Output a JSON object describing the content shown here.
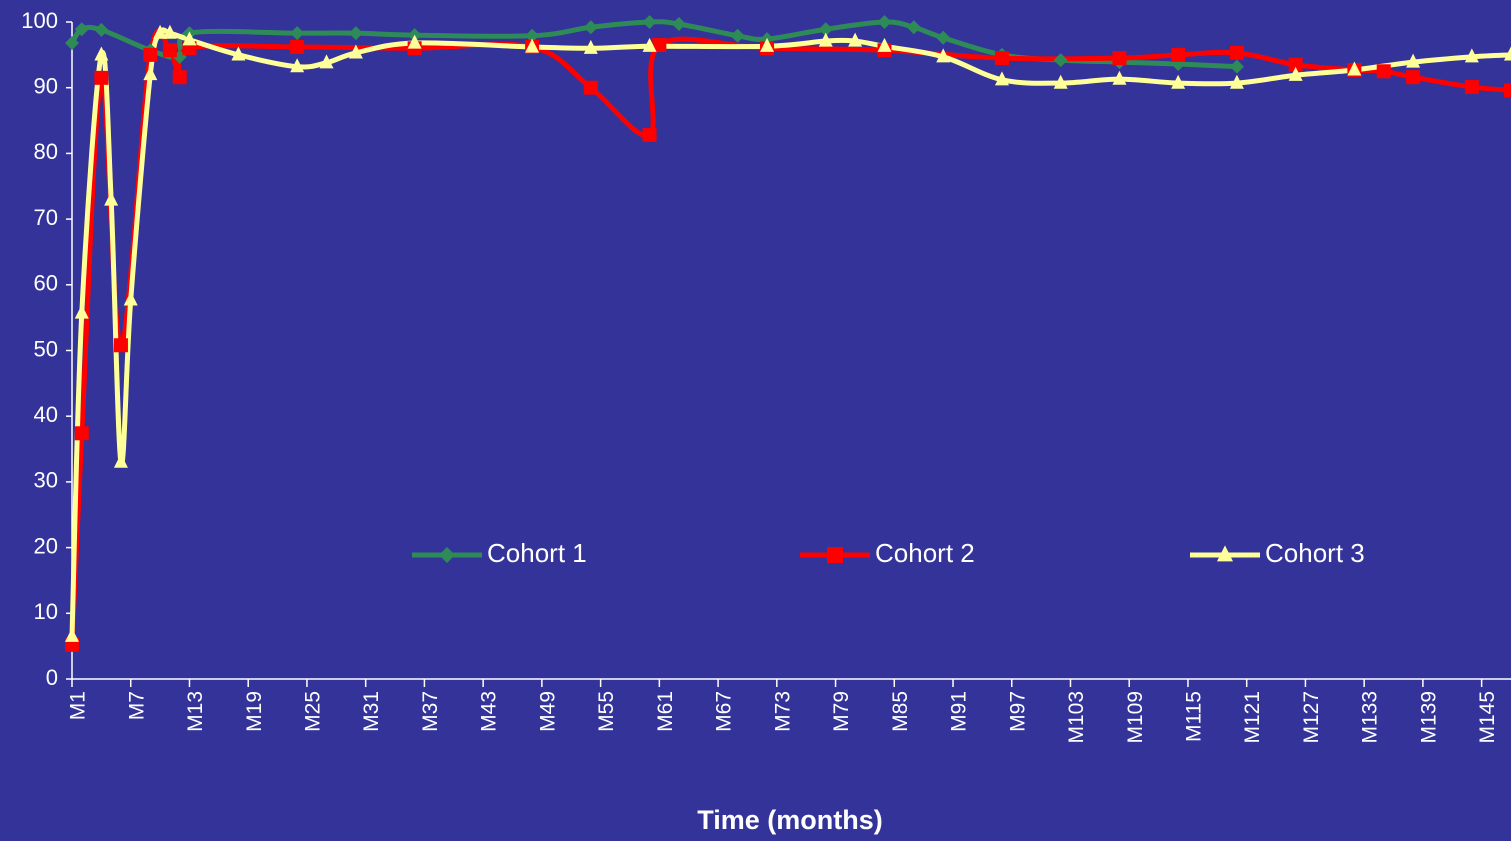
{
  "chart_data": {
    "type": "line",
    "x_label": "Time (months)",
    "xlim": [
      1,
      148
    ],
    "xticks": [
      {
        "value": 1,
        "label": "M1"
      },
      {
        "value": 7,
        "label": "M7"
      },
      {
        "value": 13,
        "label": "M13"
      },
      {
        "value": 19,
        "label": "M19"
      },
      {
        "value": 25,
        "label": "M25"
      },
      {
        "value": 31,
        "label": "M31"
      },
      {
        "value": 37,
        "label": "M37"
      },
      {
        "value": 43,
        "label": "M43"
      },
      {
        "value": 49,
        "label": "M49"
      },
      {
        "value": 55,
        "label": "M55"
      },
      {
        "value": 61,
        "label": "M61"
      },
      {
        "value": 67,
        "label": "M67"
      },
      {
        "value": 73,
        "label": "M73"
      },
      {
        "value": 79,
        "label": "M79"
      },
      {
        "value": 85,
        "label": "M85"
      },
      {
        "value": 91,
        "label": "M91"
      },
      {
        "value": 97,
        "label": "M97"
      },
      {
        "value": 103,
        "label": "M103"
      },
      {
        "value": 109,
        "label": "M109"
      },
      {
        "value": 115,
        "label": "M115"
      },
      {
        "value": 121,
        "label": "M121"
      },
      {
        "value": 127,
        "label": "M127"
      },
      {
        "value": 133,
        "label": "M133"
      },
      {
        "value": 139,
        "label": "M139"
      },
      {
        "value": 145,
        "label": "M145"
      }
    ],
    "ylim": [
      0,
      100
    ],
    "yticks": [
      0,
      10,
      20,
      30,
      40,
      50,
      60,
      70,
      80,
      90,
      100
    ],
    "legend": "center",
    "series": [
      {
        "name": "Cohort 1",
        "color": "#2e8b57",
        "marker": "diamond",
        "x": [
          1,
          2,
          4,
          9,
          12,
          13,
          24,
          30,
          36,
          48,
          54,
          60,
          63,
          69,
          72,
          78,
          84,
          87,
          90,
          96,
          102,
          108,
          114,
          120
        ],
        "values": [
          96.8,
          98.9,
          98.8,
          95.7,
          94.7,
          98.3,
          98.3,
          98.3,
          98,
          97.9,
          99.2,
          100,
          99.7,
          97.9,
          97.4,
          98.9,
          100,
          99.2,
          97.6,
          95,
          94.2,
          93.9,
          93.6,
          93.2
        ]
      },
      {
        "name": "Cohort 2",
        "color": "#ff0000",
        "marker": "square",
        "x": [
          1,
          2,
          4,
          6,
          9,
          11,
          12,
          13,
          24,
          36,
          48,
          54,
          60,
          61,
          72,
          84,
          96,
          108,
          114,
          120,
          126,
          132,
          135,
          138,
          144,
          148
        ],
        "values": [
          5.2,
          37.4,
          91.5,
          50.8,
          95,
          95.7,
          91.6,
          96,
          96.2,
          96,
          96.2,
          90,
          82.8,
          96.5,
          96,
          95.7,
          94.5,
          94.5,
          95,
          95.3,
          93.5,
          92.7,
          92.5,
          91.6,
          90.1,
          89.6
        ]
      },
      {
        "name": "Cohort 3",
        "color": "#ffff99",
        "marker": "triangle",
        "x": [
          1,
          2,
          4,
          5,
          6,
          7,
          9,
          10,
          11,
          13,
          18,
          24,
          27,
          30,
          36,
          48,
          54,
          60,
          72,
          78,
          81,
          84,
          90,
          96,
          102,
          108,
          114,
          120,
          126,
          132,
          138,
          144,
          148
        ],
        "values": [
          6.5,
          55.7,
          95,
          72.9,
          33,
          57.7,
          92,
          98.3,
          98.3,
          97.3,
          95,
          93.2,
          93.8,
          95.3,
          96.8,
          96.2,
          96,
          96.3,
          96.3,
          97.1,
          97.1,
          96.3,
          94.7,
          91.2,
          90.7,
          91.3,
          90.7,
          90.7,
          91.9,
          92.7,
          93.9,
          94.7,
          95
        ]
      }
    ]
  }
}
